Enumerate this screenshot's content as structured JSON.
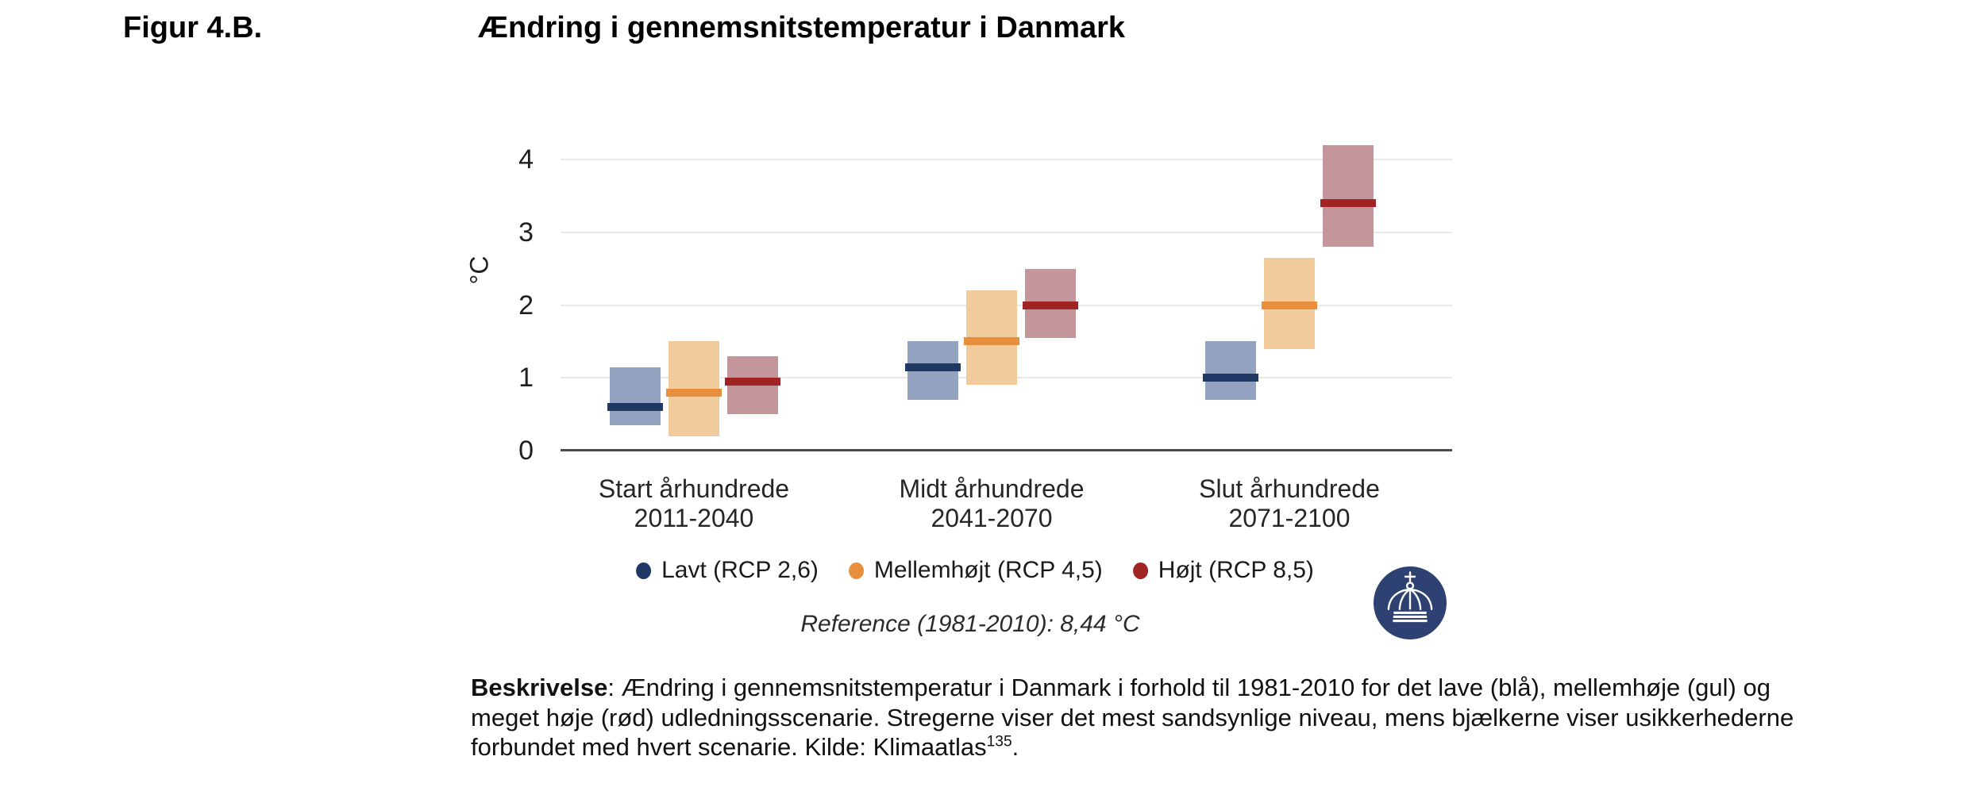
{
  "figure": {
    "label": "Figur 4.B.",
    "title": "Ændring i gennemsnitstemperatur i Danmark"
  },
  "chart_data": {
    "type": "range-bar",
    "title": "Ændring i gennemsnitstemperatur i Danmark",
    "ylabel": "°C",
    "ylim": [
      0,
      4.45
    ],
    "yticks": [
      0,
      1,
      2,
      3,
      4
    ],
    "grid": "horizontal",
    "legend_position": "bottom",
    "categories": [
      {
        "label": "Start århundrede",
        "sublabel": "2011-2040"
      },
      {
        "label": "Midt århundrede",
        "sublabel": "2041-2070"
      },
      {
        "label": "Slut århundrede",
        "sublabel": "2071-2100"
      }
    ],
    "series": [
      {
        "name": "Lavt (RCP 2,6)",
        "line_color": "#1F3864",
        "fill_color": "#93A2BE",
        "values": [
          {
            "low": 0.35,
            "likely": 0.6,
            "high": 1.15
          },
          {
            "low": 0.7,
            "likely": 1.15,
            "high": 1.5
          },
          {
            "low": 0.7,
            "likely": 1.0,
            "high": 1.5
          }
        ]
      },
      {
        "name": "Mellemhøjt (RCP 4,5)",
        "line_color": "#E88F3E",
        "fill_color": "#F2CB9D",
        "values": [
          {
            "low": 0.2,
            "likely": 0.8,
            "high": 1.5
          },
          {
            "low": 0.9,
            "likely": 1.5,
            "high": 2.2
          },
          {
            "low": 1.4,
            "likely": 2.0,
            "high": 2.65
          }
        ]
      },
      {
        "name": "Højt (RCP 8,5)",
        "line_color": "#A02423",
        "fill_color": "#C4959A",
        "values": [
          {
            "low": 0.5,
            "likely": 0.95,
            "high": 1.3
          },
          {
            "low": 1.55,
            "likely": 2.0,
            "high": 2.5
          },
          {
            "low": 2.8,
            "likely": 3.4,
            "high": 4.2
          }
        ]
      }
    ],
    "reference_note": "Reference (1981-2010): 8,44 °C"
  },
  "description": {
    "bold_label": "Beskrivelse",
    "body": ": Ændring i gennemsnitstemperatur i Danmark i forhold til 1981-2010 for det lave (blå), mellemhøje (gul) og meget høje (rød) udledningsscenarie. Stregerne viser det mest sandsynlige niveau, mens bjælkerne viser usikkerhederne forbundet med hvert scenarie. Kilde: Klimaatlas",
    "footnote": "135",
    "tail": "."
  },
  "logo": {
    "name": "crown-logo",
    "background_color": "#2E4173"
  }
}
